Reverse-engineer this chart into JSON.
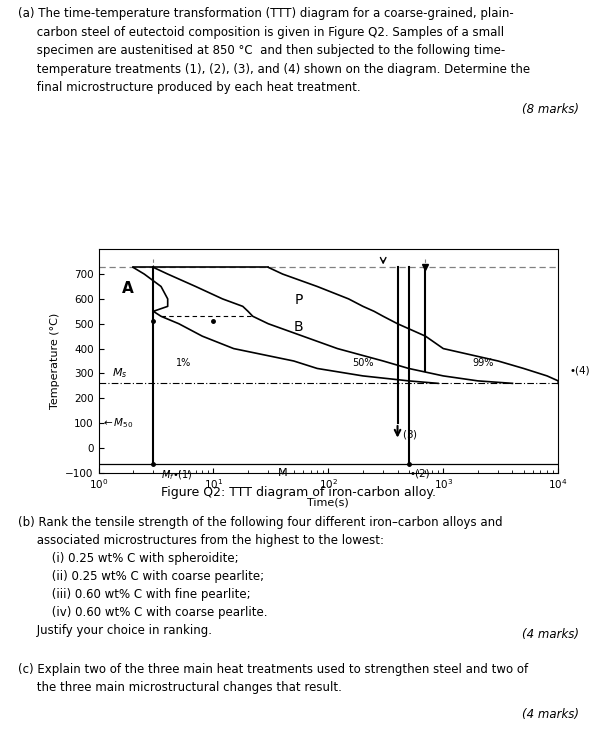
{
  "text_a": "(a) The time-temperature transformation (TTT) diagram for a coarse-grained, plain-\n     carbon steel of eutectoid composition is given in Figure Q2. Samples of a small\n     specimen are austenitised at 850 °C  and then subjected to the following time-\n     temperature treatments (1), (2), (3), and (4) shown on the diagram. Determine the\n     final microstructure produced by each heat treatment.",
  "marks_a": "(8 marks)",
  "fig_caption": "Figure Q2: TTT diagram of iron-carbon alloy.",
  "text_b_line1": "(b) Rank the tensile strength of the following four different iron–carbon alloys and",
  "text_b_line2": "     associated microstructures from the highest to the lowest:",
  "text_b_line3": "         (i) 0.25 wt% C with spheroidite;",
  "text_b_line4": "         (ii) 0.25 wt% C with coarse pearlite;",
  "text_b_line5": "         (iii) 0.60 wt% C with fine pearlite;",
  "text_b_line6": "         (iv) 0.60 wt% C with coarse pearlite.",
  "text_b_line7": "     Justify your choice in ranking.",
  "marks_b": "(4 marks)",
  "text_c": "(c) Explain two of the three main heat treatments used to strengthen steel and two of\n     the three main microstructural changes that result.",
  "marks_c": "(4 marks)",
  "ylim": [
    -100,
    800
  ],
  "eutectoid_temp": 727,
  "Ms_temp": 260,
  "M50_temp": 100,
  "Mf_temp": -65,
  "T_arr": [
    727,
    700,
    650,
    600,
    570,
    550,
    530,
    500,
    450,
    400,
    350,
    320,
    290,
    270,
    260
  ],
  "t_1pct": [
    2,
    2.5,
    3.5,
    4,
    4,
    3,
    3.5,
    5,
    8,
    15,
    50,
    80,
    200,
    500,
    900
  ],
  "t_50pct": [
    3,
    4,
    7,
    12,
    18,
    20,
    22,
    30,
    60,
    120,
    300,
    500,
    1000,
    2000,
    4000
  ],
  "t_99pct": [
    30,
    40,
    80,
    150,
    200,
    250,
    300,
    400,
    700,
    1000,
    3000,
    5000,
    8000,
    10000,
    10000
  ],
  "background": "#ffffff",
  "curve_color": "#000000"
}
